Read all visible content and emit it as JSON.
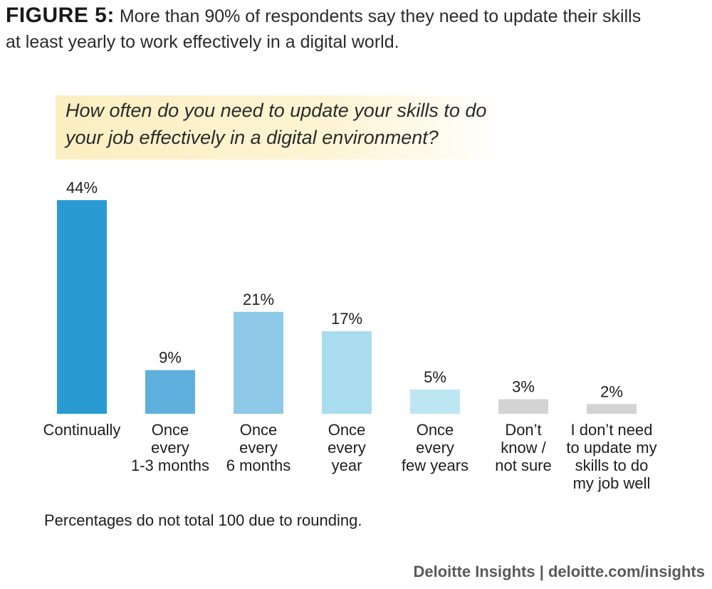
{
  "figure": {
    "label": "FIGURE 5:",
    "title_line1": "More than 90% of respondents say they need to update their skills",
    "title_line2": "at least yearly to work effectively in a digital world."
  },
  "question": {
    "line1": "How often do you need to update your skills to do",
    "line2": "your job effectively in a digital environment?"
  },
  "chart_data": {
    "type": "bar",
    "categories": [
      [
        "Continually"
      ],
      [
        "Once",
        "every",
        "1-3 months"
      ],
      [
        "Once",
        "every",
        "6 months"
      ],
      [
        "Once",
        "every",
        "year"
      ],
      [
        "Once",
        "every",
        "few years"
      ],
      [
        "Don’t",
        "know /",
        "not sure"
      ],
      [
        "I don’t need",
        "to update my",
        "skills to do",
        "my job well"
      ]
    ],
    "values": [
      44,
      9,
      21,
      17,
      5,
      3,
      2
    ],
    "value_labels": [
      "44%",
      "9%",
      "21%",
      "17%",
      "5%",
      "3%",
      "2%"
    ],
    "bar_colors": [
      "#2a9ad3",
      "#5fb0dc",
      "#8ecae8",
      "#a9dcef",
      "#bde6f3",
      "#d3d3d3",
      "#d3d3d3"
    ],
    "ylim": [
      0,
      44
    ],
    "xlabel": "",
    "ylabel": ""
  },
  "footnote": "Percentages do not total 100 due to rounding.",
  "source": "Deloitte Insights | deloitte.com/insights"
}
